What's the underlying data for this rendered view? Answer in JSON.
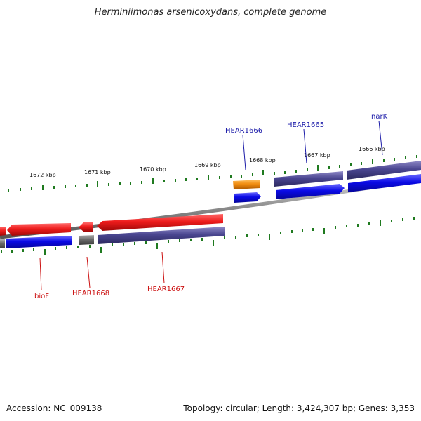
{
  "title": "Herminiimonas arsenicoxydans, complete genome",
  "footer": {
    "accession": "Accession: NC_009138",
    "stats": "Topology: circular; Length: 3,424,307 bp; Genes: 3,353"
  },
  "colors": {
    "backbone": "#8a8a8a",
    "tick": "#1f7a1f",
    "forward_label": "#1a1aa8",
    "reverse_label": "#cc1111",
    "red_gene": "#ee1c1c",
    "blue_gene": "#0a0ae6",
    "purple_gene": "#4a4690",
    "gray_gene": "#6a6a6a",
    "orange_gene": "#f08c10"
  },
  "scale": {
    "tick_labels": [
      "1672 kbp",
      "1671 kbp",
      "1670 kbp",
      "1669 kbp",
      "1668 kbp",
      "1667 kbp",
      "1666 kbp"
    ]
  },
  "genes_forward": [
    {
      "name": "HEAR1666",
      "color": "orange"
    },
    {
      "name": "HEAR1665",
      "color": "purple"
    },
    {
      "name": "narK",
      "color": "purple"
    }
  ],
  "genes_reverse": [
    {
      "name": "bioF",
      "color": "red"
    },
    {
      "name": "HEAR1668",
      "color": "red"
    },
    {
      "name": "HEAR1667",
      "color": "red"
    }
  ]
}
